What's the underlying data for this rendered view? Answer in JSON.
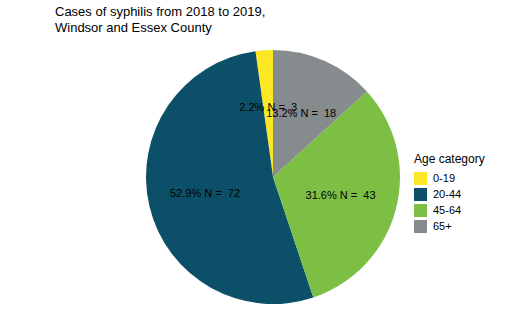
{
  "chart_data": {
    "type": "pie",
    "title": "Cases of syphilis from 2018 to 2019,\nWindsor and Essex County",
    "legend_title": "Age category",
    "categories": [
      "0-19",
      "20-44",
      "45-64",
      "65+"
    ],
    "values": [
      3,
      72,
      43,
      18
    ],
    "value_labels": [
      "2.2% N =  3",
      "52.9% N =  72",
      "31.6% N =  43",
      "13.2% N =  18"
    ],
    "colors": [
      "#fde725",
      "#0b5068",
      "#7dbf45",
      "#868b8e"
    ],
    "data_labels": true,
    "legend": "right"
  }
}
